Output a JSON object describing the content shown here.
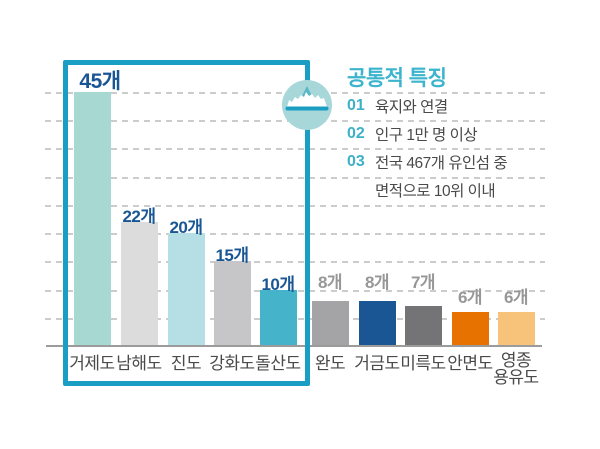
{
  "chart_data": {
    "type": "bar",
    "title": "",
    "categories": [
      "거제도",
      "남해도",
      "진도",
      "강화도",
      "돌산도",
      "완도",
      "거금도",
      "미륵도",
      "안면도",
      "영종\n용유도"
    ],
    "values": [
      45,
      22,
      20,
      15,
      10,
      8,
      8,
      7,
      6,
      6
    ],
    "value_labels": [
      "45개",
      "22개",
      "20개",
      "15개",
      "10개",
      "8개",
      "8개",
      "7개",
      "6개",
      "6개"
    ],
    "unit_suffix": "개",
    "ylim": [
      0,
      45
    ],
    "gridline_interval": 5,
    "grid": "horizontal-dashed",
    "legend_position": "none",
    "bar_colors": [
      "#a7d8d1",
      "#dcdcdc",
      "#b6dfe5",
      "#c6c6c8",
      "#45b3ca",
      "#a4a4a6",
      "#1a5693",
      "#747476",
      "#e87200",
      "#f7c27a"
    ],
    "value_label_colors": [
      "#1a5694",
      "#1a5694",
      "#1a5694",
      "#1a5694",
      "#1a5694",
      "#979797",
      "#979797",
      "#979797",
      "#979797",
      "#979797"
    ],
    "highlighted_categories": [
      "거제도",
      "남해도",
      "진도",
      "강화도",
      "돌산도"
    ]
  },
  "info_panel": {
    "title": "공통적 특징",
    "items": [
      {
        "number": "01",
        "text": "육지와 연결"
      },
      {
        "number": "02",
        "text": "인구 1만 명 이상"
      },
      {
        "number": "03",
        "text": "전국 467개 유인섬 중"
      },
      {
        "number": "",
        "text": "면적으로 10위 이내"
      }
    ]
  },
  "icon": {
    "name": "island-icon",
    "description": "island above sea line in circle badge"
  },
  "colors": {
    "accent_teal": "#1b9ec3",
    "title_teal": "#3cb4cd",
    "number_teal": "#3eb1c8",
    "value_blue": "#1a5694",
    "value_gray": "#979797",
    "text_dark": "#4a4a4a",
    "axis_gray": "#9b9b9b",
    "gridline_gray": "#cccccc",
    "badge_bg": "#a8d7da",
    "badge_peak": "#5bb7c7",
    "background": "#ffffff"
  }
}
